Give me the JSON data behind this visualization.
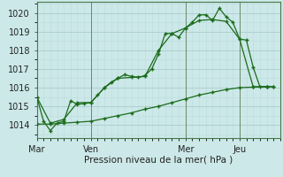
{
  "xlabel": "Pression niveau de la mer( hPa )",
  "background_color": "#cce8e8",
  "grid_major_color": "#aacccc",
  "grid_minor_color": "#bbdddd",
  "line_color": "#1a6b1a",
  "ylim": [
    1013.3,
    1020.6
  ],
  "yticks": [
    1014,
    1015,
    1016,
    1017,
    1018,
    1019,
    1020
  ],
  "day_labels": [
    "Mar",
    "Ven",
    "Mer",
    "Jeu"
  ],
  "day_positions": [
    0,
    8,
    22,
    30
  ],
  "xlim": [
    0,
    36
  ],
  "vline_positions": [
    0,
    8,
    22,
    30
  ],
  "line1_x": [
    0,
    1,
    2,
    3,
    4,
    5,
    6,
    7,
    8,
    9,
    10,
    11,
    12,
    13,
    14,
    15,
    16,
    17,
    18,
    19,
    20,
    21,
    22,
    23,
    24,
    25,
    26,
    27,
    28,
    29,
    30,
    31,
    32,
    33,
    34,
    35
  ],
  "line1_y": [
    1015.5,
    1014.2,
    1013.7,
    1014.1,
    1014.2,
    1015.3,
    1015.1,
    1015.15,
    1015.2,
    1015.6,
    1016.0,
    1016.3,
    1016.5,
    1016.7,
    1016.6,
    1016.55,
    1016.65,
    1017.0,
    1017.8,
    1018.9,
    1018.9,
    1018.7,
    1019.2,
    1019.5,
    1019.9,
    1019.9,
    1019.6,
    1020.25,
    1019.8,
    1019.5,
    1018.6,
    1018.55,
    1017.1,
    1016.05,
    1016.05,
    1016.05
  ],
  "line2_x": [
    0,
    2,
    4,
    6,
    8,
    10,
    12,
    14,
    16,
    18,
    20,
    22,
    24,
    26,
    28,
    30,
    32,
    34
  ],
  "line2_y": [
    1015.5,
    1014.1,
    1014.3,
    1015.2,
    1015.2,
    1016.0,
    1016.5,
    1016.55,
    1016.6,
    1018.0,
    1018.9,
    1019.2,
    1019.6,
    1019.65,
    1019.55,
    1018.6,
    1016.05,
    1016.05
  ],
  "line3_x": [
    0,
    2,
    4,
    6,
    8,
    10,
    12,
    14,
    16,
    18,
    20,
    22,
    24,
    26,
    28,
    30,
    32,
    34,
    35
  ],
  "line3_y": [
    1014.05,
    1014.05,
    1014.1,
    1014.15,
    1014.2,
    1014.35,
    1014.5,
    1014.65,
    1014.85,
    1015.0,
    1015.2,
    1015.4,
    1015.6,
    1015.75,
    1015.9,
    1016.0,
    1016.03,
    1016.05,
    1016.05
  ]
}
